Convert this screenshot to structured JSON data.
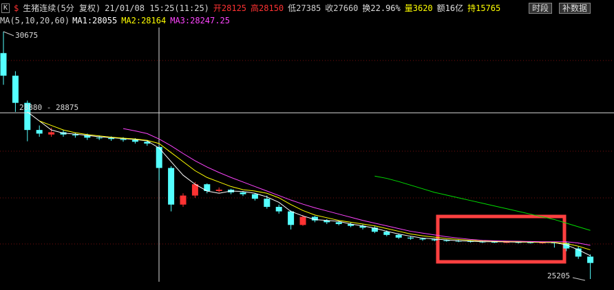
{
  "header": {
    "icon": "K",
    "symbol_mark": "$",
    "title": "生猪连续(5分 复权)",
    "datetime": "21/01/08 15:25(11:25)",
    "stats": [
      {
        "text": "开28125",
        "color": "#ff3232"
      },
      {
        "text": "高28150",
        "color": "#ff3232"
      },
      {
        "text": "低27385",
        "color": "#d0d0d0"
      },
      {
        "text": "收27660",
        "color": "#d0d0d0"
      },
      {
        "text": "换22.96%",
        "color": "#e0e0e0"
      },
      {
        "text": "量3620",
        "color": "#ffff00"
      },
      {
        "text": "额16亿",
        "color": "#e0e0e0"
      },
      {
        "text": "持15765",
        "color": "#ffff00"
      }
    ],
    "buttons": [
      "时段",
      "补数据"
    ]
  },
  "ma_header": {
    "params": "MA(5,10,20,60)",
    "items": [
      {
        "text": "MA1:28055",
        "color": "#ffffff"
      },
      {
        "text": "MA2:28164",
        "color": "#ffff00"
      },
      {
        "text": "MA3:28247.25",
        "color": "#ff44ff"
      }
    ]
  },
  "chart_data": {
    "type": "candlestick",
    "ylim": [
      25205,
      30675
    ],
    "up_color": "#ff3232",
    "down_color": "#54ffff",
    "open": [
      30200,
      29700,
      29100,
      28500,
      28400,
      28450,
      28400,
      28380,
      28330,
      28320,
      28300,
      28280,
      28240,
      28125,
      27660,
      26850,
      27050,
      27300,
      27150,
      27180,
      27120,
      27080,
      26980,
      26800,
      26700,
      26400,
      26580,
      26500,
      26460,
      26420,
      26380,
      26340,
      26250,
      26180,
      26120,
      26100,
      26080,
      26060,
      26050,
      26040,
      26030,
      26025,
      26020,
      26020,
      26015,
      26010,
      26010,
      26000,
      25880,
      25700
    ],
    "high": [
      30675,
      29800,
      29150,
      28600,
      28550,
      28500,
      28440,
      28420,
      28380,
      28360,
      28340,
      28320,
      28280,
      28150,
      27700,
      27100,
      27350,
      27320,
      27230,
      27200,
      27150,
      27100,
      27050,
      26850,
      26720,
      26620,
      26600,
      26530,
      26490,
      26450,
      26410,
      26370,
      26280,
      26210,
      26150,
      26120,
      26100,
      26080,
      26070,
      26060,
      26050,
      26040,
      26035,
      26030,
      26030,
      26025,
      26030,
      26020,
      25920,
      25750
    ],
    "low": [
      29500,
      28900,
      28250,
      28350,
      28350,
      28350,
      28330,
      28280,
      28280,
      28260,
      28240,
      28200,
      28150,
      27385,
      26700,
      26800,
      27000,
      27100,
      27120,
      27080,
      27040,
      26940,
      26760,
      26650,
      26300,
      26380,
      26460,
      26420,
      26390,
      26350,
      26300,
      26220,
      26150,
      26090,
      26070,
      26050,
      26040,
      26030,
      26020,
      26010,
      26000,
      26000,
      26000,
      25990,
      25990,
      25985,
      25900,
      25820,
      25650,
      25205
    ],
    "close": [
      29700,
      29100,
      28500,
      28420,
      28450,
      28400,
      28380,
      28330,
      28320,
      28300,
      28280,
      28240,
      28200,
      27660,
      26850,
      27050,
      27300,
      27150,
      27180,
      27120,
      27080,
      26980,
      26800,
      26700,
      26400,
      26580,
      26500,
      26460,
      26420,
      26380,
      26340,
      26250,
      26180,
      26120,
      26100,
      26080,
      26060,
      26050,
      26040,
      26030,
      26025,
      26020,
      26020,
      26015,
      26010,
      26010,
      26000,
      25880,
      25700,
      25560
    ],
    "ma_lines": [
      {
        "color": "#ffffff",
        "values": [
          null,
          null,
          28900,
          28700,
          28500,
          28430,
          28410,
          28380,
          28350,
          28330,
          28310,
          28290,
          28260,
          28100,
          27800,
          27500,
          27300,
          27150,
          27100,
          27150,
          27140,
          27100,
          27020,
          26900,
          26700,
          26600,
          26520,
          26500,
          26480,
          26420,
          26380,
          26330,
          26260,
          26200,
          26150,
          26110,
          26090,
          26070,
          26050,
          26040,
          26030,
          26030,
          26025,
          26020,
          26020,
          26015,
          26010,
          25960,
          25850,
          25720
        ]
      },
      {
        "color": "#ffff00",
        "values": [
          null,
          null,
          null,
          28700,
          28600,
          28500,
          28440,
          28400,
          28370,
          28340,
          28320,
          28300,
          28270,
          28200,
          28000,
          27800,
          27600,
          27450,
          27350,
          27250,
          27180,
          27150,
          27100,
          27000,
          26850,
          26720,
          26620,
          26560,
          26500,
          26460,
          26420,
          26380,
          26320,
          26260,
          26200,
          26160,
          26130,
          26100,
          26080,
          26060,
          26050,
          26040,
          26035,
          26030,
          26025,
          26020,
          26015,
          25990,
          25930,
          25850
        ]
      },
      {
        "color": "#ff44ff",
        "values": [
          null,
          null,
          null,
          null,
          null,
          null,
          null,
          null,
          null,
          null,
          28530,
          28480,
          28420,
          28300,
          28150,
          27980,
          27820,
          27680,
          27560,
          27450,
          27350,
          27250,
          27150,
          27050,
          26950,
          26860,
          26780,
          26710,
          26640,
          26570,
          26500,
          26440,
          26380,
          26320,
          26260,
          26220,
          26180,
          26140,
          26110,
          26080,
          26060,
          26050,
          26045,
          26040,
          26035,
          26030,
          26030,
          26030,
          26000,
          25950
        ]
      },
      {
        "color": "#00dd00",
        "values": [
          null,
          null,
          null,
          null,
          null,
          null,
          null,
          null,
          null,
          null,
          null,
          null,
          null,
          null,
          null,
          null,
          null,
          null,
          null,
          null,
          null,
          null,
          null,
          null,
          null,
          null,
          null,
          null,
          null,
          null,
          null,
          27480,
          27430,
          27360,
          27280,
          27200,
          27120,
          27060,
          27000,
          26940,
          26880,
          26820,
          26760,
          26700,
          26640,
          26580,
          26520,
          26440,
          26360,
          26280
        ]
      }
    ],
    "high_label": 30675,
    "low_label": 25205,
    "crosshair": {
      "price": 28880,
      "label": "28880 - 28875"
    }
  }
}
